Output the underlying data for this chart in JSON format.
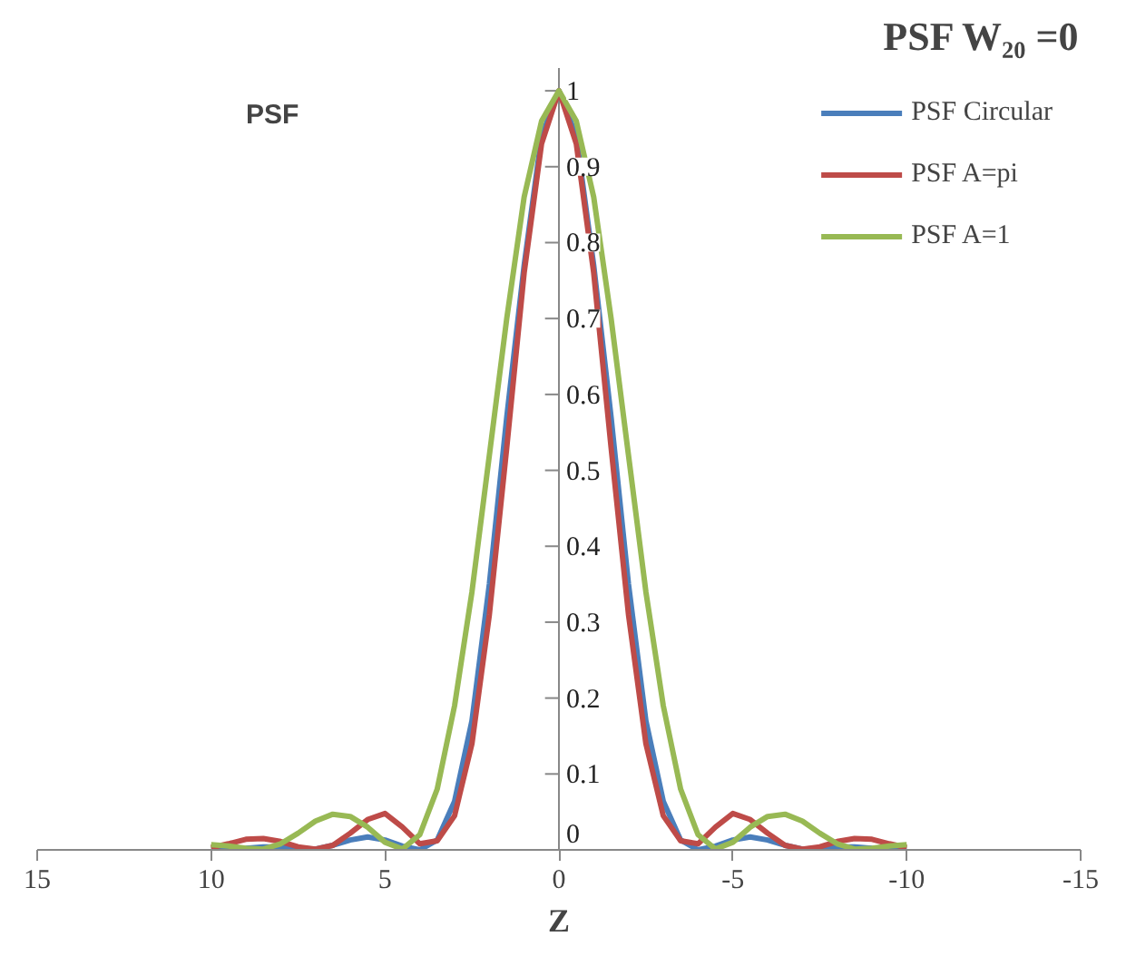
{
  "chart_data": {
    "type": "line",
    "title": "PSF W₂₀ =0",
    "xlabel": "Z",
    "ylabel": "PSF",
    "x": [
      -10,
      -9.5,
      -9,
      -8.5,
      -8,
      -7.5,
      -7,
      -6.5,
      -6,
      -5.5,
      -5,
      -4.5,
      -4,
      -3.5,
      -3,
      -2.5,
      -2,
      -1.5,
      -1,
      -0.5,
      0,
      0.5,
      1,
      1.5,
      2,
      2.5,
      3,
      3.5,
      4,
      4.5,
      5,
      5.5,
      6,
      6.5,
      7,
      7.5,
      8,
      8.5,
      9,
      9.5,
      10
    ],
    "series": [
      {
        "name": "PSF Circular",
        "color": "#4a7ebb",
        "values": [
          0.001,
          0.001,
          0.002,
          0.004,
          0.004,
          0.002,
          0.001,
          0.006,
          0.013,
          0.017,
          0.013,
          0.005,
          0.0,
          0.013,
          0.064,
          0.17,
          0.35,
          0.57,
          0.77,
          0.94,
          1,
          0.94,
          0.77,
          0.57,
          0.35,
          0.17,
          0.064,
          0.013,
          0.0,
          0.005,
          0.013,
          0.017,
          0.013,
          0.006,
          0.001,
          0.002,
          0.004,
          0.004,
          0.002,
          0.001,
          0.001
        ]
      },
      {
        "name": "PSF A=pi",
        "color": "#be4b48",
        "values": [
          0.003,
          0.008,
          0.014,
          0.015,
          0.011,
          0.004,
          0.001,
          0.006,
          0.022,
          0.04,
          0.048,
          0.03,
          0.008,
          0.012,
          0.045,
          0.14,
          0.31,
          0.53,
          0.76,
          0.93,
          1,
          0.93,
          0.76,
          0.53,
          0.31,
          0.14,
          0.045,
          0.012,
          0.008,
          0.03,
          0.048,
          0.04,
          0.022,
          0.006,
          0.001,
          0.004,
          0.011,
          0.015,
          0.014,
          0.008,
          0.003
        ]
      },
      {
        "name": "PSF A=1",
        "color": "#98b954",
        "values": [
          0.007,
          0.005,
          0.002,
          0.001,
          0.008,
          0.022,
          0.038,
          0.047,
          0.044,
          0.03,
          0.01,
          0.001,
          0.02,
          0.08,
          0.19,
          0.34,
          0.52,
          0.7,
          0.86,
          0.96,
          1,
          0.96,
          0.86,
          0.7,
          0.52,
          0.34,
          0.19,
          0.08,
          0.02,
          0.001,
          0.01,
          0.03,
          0.044,
          0.047,
          0.038,
          0.022,
          0.008,
          0.001,
          0.002,
          0.005,
          0.007
        ]
      }
    ],
    "xlim": [
      15,
      -15
    ],
    "xticks": [
      15,
      10,
      5,
      0,
      -5,
      -10,
      -15
    ],
    "ylim": [
      0,
      1.03
    ],
    "yticks": [
      0,
      0.1,
      0.2,
      0.3,
      0.4,
      0.5,
      0.6,
      0.7,
      0.8,
      0.9,
      1
    ],
    "grid": false,
    "legend": "top right",
    "marker": "none",
    "line_style": "solid"
  }
}
